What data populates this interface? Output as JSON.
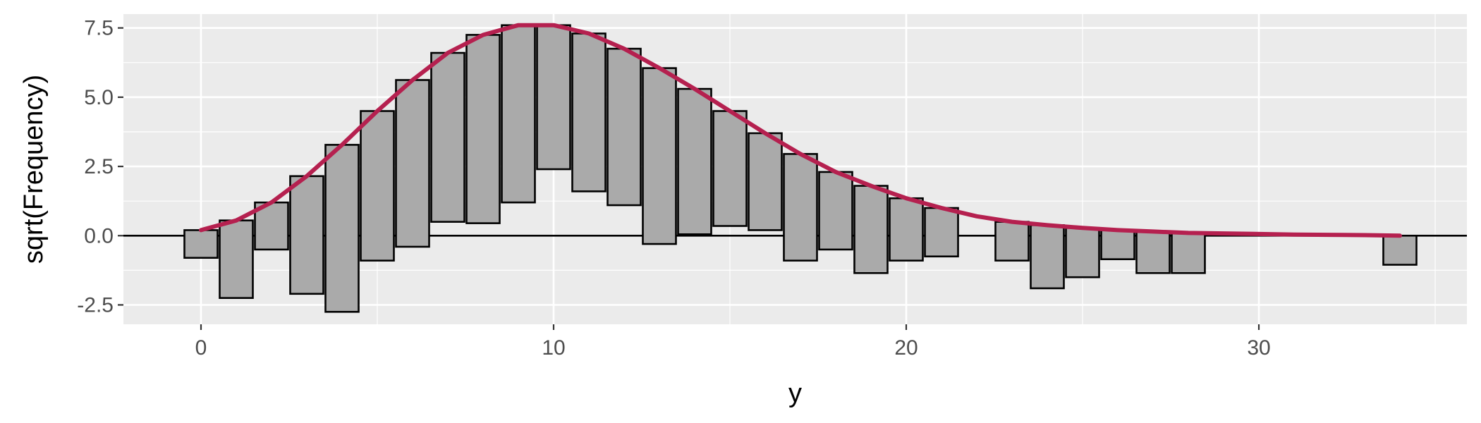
{
  "chart_data": {
    "type": "bar",
    "subtype": "hanging rootogram",
    "xlabel": "y",
    "ylabel": "sqrt(Frequency)",
    "xlim": [
      -2.2,
      35.9
    ],
    "ylim": [
      -3.2,
      8.0
    ],
    "x_ticks": [
      0,
      10,
      20,
      30
    ],
    "x_tick_labels": [
      "0",
      "10",
      "20",
      "30"
    ],
    "y_ticks": [
      -2.5,
      0.0,
      2.5,
      5.0,
      7.5
    ],
    "y_tick_labels": [
      "-2.5",
      "0.0",
      "2.5",
      "5.0",
      "7.5"
    ],
    "grid": true,
    "reference_line_y": 0,
    "bars": [
      {
        "x": 0,
        "top": 0.2,
        "bottom": -0.8
      },
      {
        "x": 1,
        "top": 0.55,
        "bottom": -2.25
      },
      {
        "x": 2,
        "top": 1.2,
        "bottom": -0.5
      },
      {
        "x": 3,
        "top": 2.15,
        "bottom": -2.1
      },
      {
        "x": 4,
        "top": 3.28,
        "bottom": -2.75
      },
      {
        "x": 5,
        "top": 4.5,
        "bottom": -0.9
      },
      {
        "x": 6,
        "top": 5.62,
        "bottom": -0.4
      },
      {
        "x": 7,
        "top": 6.6,
        "bottom": 0.5
      },
      {
        "x": 8,
        "top": 7.25,
        "bottom": 0.45
      },
      {
        "x": 9,
        "top": 7.6,
        "bottom": 1.2
      },
      {
        "x": 10,
        "top": 7.6,
        "bottom": 2.4
      },
      {
        "x": 11,
        "top": 7.3,
        "bottom": 1.6
      },
      {
        "x": 12,
        "top": 6.75,
        "bottom": 1.1
      },
      {
        "x": 13,
        "top": 6.05,
        "bottom": -0.3
      },
      {
        "x": 14,
        "top": 5.3,
        "bottom": 0.05
      },
      {
        "x": 15,
        "top": 4.5,
        "bottom": 0.35
      },
      {
        "x": 16,
        "top": 3.7,
        "bottom": 0.2
      },
      {
        "x": 17,
        "top": 2.95,
        "bottom": -0.9
      },
      {
        "x": 18,
        "top": 2.3,
        "bottom": -0.5
      },
      {
        "x": 19,
        "top": 1.8,
        "bottom": -1.35
      },
      {
        "x": 20,
        "top": 1.35,
        "bottom": -0.9
      },
      {
        "x": 21,
        "top": 1.0,
        "bottom": -0.75
      },
      {
        "x": 23,
        "top": 0.5,
        "bottom": -0.9
      },
      {
        "x": 24,
        "top": 0.38,
        "bottom": -1.9
      },
      {
        "x": 25,
        "top": 0.28,
        "bottom": -1.5
      },
      {
        "x": 26,
        "top": 0.2,
        "bottom": -0.85
      },
      {
        "x": 27,
        "top": 0.15,
        "bottom": -1.35
      },
      {
        "x": 28,
        "top": 0.1,
        "bottom": -1.35
      },
      {
        "x": 34,
        "top": 0.0,
        "bottom": -1.05
      }
    ],
    "expected_curve": {
      "x": [
        0,
        1,
        2,
        3,
        4,
        5,
        6,
        7,
        8,
        9,
        10,
        11,
        12,
        13,
        14,
        15,
        16,
        17,
        18,
        19,
        20,
        21,
        22,
        23,
        24,
        25,
        26,
        27,
        28,
        29,
        30,
        31,
        32,
        33,
        34
      ],
      "y": [
        0.2,
        0.55,
        1.2,
        2.15,
        3.28,
        4.5,
        5.62,
        6.6,
        7.25,
        7.6,
        7.6,
        7.3,
        6.75,
        6.05,
        5.3,
        4.5,
        3.7,
        2.95,
        2.3,
        1.8,
        1.35,
        1.0,
        0.7,
        0.5,
        0.38,
        0.28,
        0.2,
        0.15,
        0.1,
        0.08,
        0.06,
        0.04,
        0.03,
        0.02,
        0.0
      ]
    },
    "colors": {
      "panel_background": "#ebebeb",
      "grid_major": "#ffffff",
      "bar_fill": "#aaaaaa",
      "bar_border": "#000000",
      "curve": "#b5204f",
      "zero_line": "#000000"
    }
  }
}
